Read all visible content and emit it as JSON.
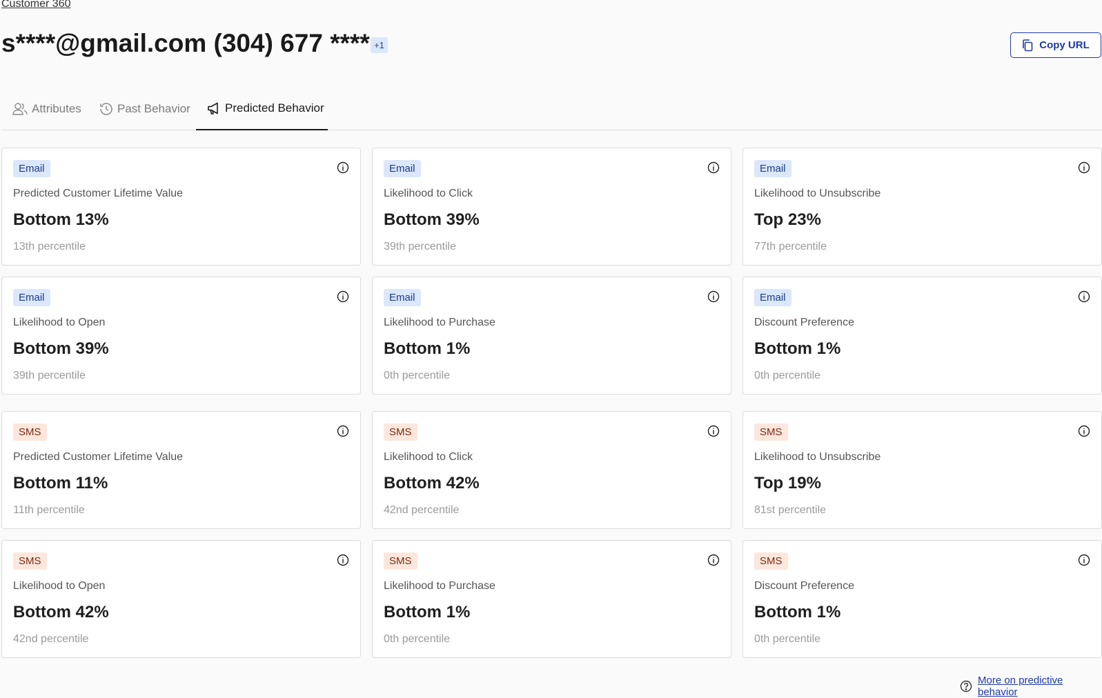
{
  "breadcrumb": "Customer 360",
  "header": {
    "title": "s****@gmail.com (304) 677 ****",
    "extra_count": "+1",
    "copy_url_label": "Copy URL"
  },
  "tabs": [
    {
      "label": "Attributes",
      "icon": "users-icon",
      "active": false
    },
    {
      "label": "Past Behavior",
      "icon": "history-icon",
      "active": false
    },
    {
      "label": "Predicted Behavior",
      "icon": "megaphone-icon",
      "active": true
    }
  ],
  "cards": [
    {
      "channel": "Email",
      "metric": "Predicted Customer Lifetime Value",
      "value": "Bottom 13%",
      "percentile": "13th percentile"
    },
    {
      "channel": "Email",
      "metric": "Likelihood to Click",
      "value": "Bottom 39%",
      "percentile": "39th percentile"
    },
    {
      "channel": "Email",
      "metric": "Likelihood to Unsubscribe",
      "value": "Top 23%",
      "percentile": "77th percentile"
    },
    {
      "channel": "Email",
      "metric": "Likelihood to Open",
      "value": "Bottom 39%",
      "percentile": "39th percentile"
    },
    {
      "channel": "Email",
      "metric": "Likelihood to Purchase",
      "value": "Bottom 1%",
      "percentile": "0th percentile"
    },
    {
      "channel": "Email",
      "metric": "Discount Preference",
      "value": "Bottom 1%",
      "percentile": "0th percentile"
    },
    {
      "channel": "SMS",
      "metric": "Predicted Customer Lifetime Value",
      "value": "Bottom 11%",
      "percentile": "11th percentile"
    },
    {
      "channel": "SMS",
      "metric": "Likelihood to Click",
      "value": "Bottom 42%",
      "percentile": "42nd percentile"
    },
    {
      "channel": "SMS",
      "metric": "Likelihood to Unsubscribe",
      "value": "Top 19%",
      "percentile": "81st percentile"
    },
    {
      "channel": "SMS",
      "metric": "Likelihood to Open",
      "value": "Bottom 42%",
      "percentile": "42nd percentile"
    },
    {
      "channel": "SMS",
      "metric": "Likelihood to Purchase",
      "value": "Bottom 1%",
      "percentile": "0th percentile"
    },
    {
      "channel": "SMS",
      "metric": "Discount Preference",
      "value": "Bottom 1%",
      "percentile": "0th percentile"
    }
  ],
  "footer": {
    "more_link": "More on predictive behavior",
    "icon": "help-circle-icon"
  },
  "colors": {
    "email_chip_bg": "#dbe7fb",
    "sms_chip_bg": "#fde7dc",
    "accent": "#1d3aa6"
  }
}
